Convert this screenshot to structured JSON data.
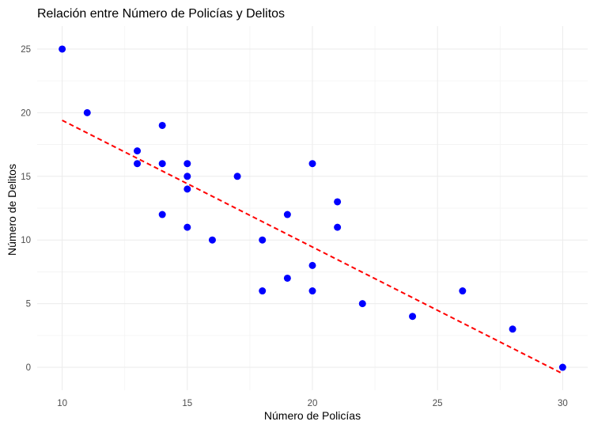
{
  "chart_data": {
    "type": "scatter",
    "title": "Relación entre Número de Policías y Delitos",
    "xlabel": "Número de Policías",
    "ylabel": "Número de Delitos",
    "xlim": [
      9,
      31
    ],
    "ylim": [
      -1.8,
      26.8
    ],
    "x_ticks": [
      10,
      15,
      20,
      25,
      30
    ],
    "y_ticks": [
      0,
      5,
      10,
      15,
      20,
      25
    ],
    "grid": true,
    "series": [
      {
        "color": "#0000ff",
        "points": [
          {
            "x": 10,
            "y": 25
          },
          {
            "x": 11,
            "y": 20
          },
          {
            "x": 13,
            "y": 17
          },
          {
            "x": 13,
            "y": 16
          },
          {
            "x": 14,
            "y": 19
          },
          {
            "x": 14,
            "y": 16
          },
          {
            "x": 14,
            "y": 12
          },
          {
            "x": 15,
            "y": 16
          },
          {
            "x": 15,
            "y": 15
          },
          {
            "x": 15,
            "y": 14
          },
          {
            "x": 15,
            "y": 11
          },
          {
            "x": 16,
            "y": 10
          },
          {
            "x": 17,
            "y": 15
          },
          {
            "x": 18,
            "y": 10
          },
          {
            "x": 18,
            "y": 6
          },
          {
            "x": 19,
            "y": 12
          },
          {
            "x": 19,
            "y": 7
          },
          {
            "x": 20,
            "y": 16
          },
          {
            "x": 20,
            "y": 8
          },
          {
            "x": 20,
            "y": 6
          },
          {
            "x": 21,
            "y": 13
          },
          {
            "x": 21,
            "y": 11
          },
          {
            "x": 22,
            "y": 5
          },
          {
            "x": 24,
            "y": 4
          },
          {
            "x": 26,
            "y": 6
          },
          {
            "x": 28,
            "y": 3
          },
          {
            "x": 30,
            "y": 0
          }
        ]
      }
    ],
    "trend_line": {
      "style": "dashed",
      "color": "#ff0000",
      "x": [
        10,
        30
      ],
      "y": [
        19.4,
        -0.5
      ]
    }
  }
}
